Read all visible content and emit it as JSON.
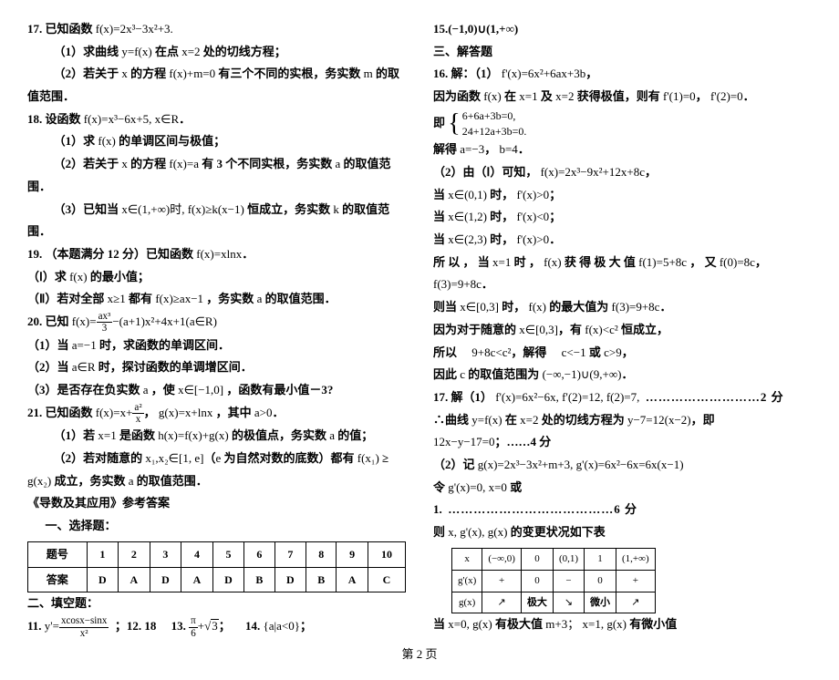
{
  "left": {
    "q17": {
      "head": "17. 已知函数",
      "f": "f(x)=2x³−3x²+3.",
      "p1a": "（1）求曲线",
      "p1b": "y=f(x)",
      "p1c": "在点",
      "p1d": "x=2",
      "p1e": "处的切线方程；",
      "p2a": "（2）若关于",
      "p2b": "x",
      "p2c": "的方程",
      "p2d": "f(x)+m=0",
      "p2e": "有三个不同的实根，务实数",
      "p2f": "m",
      "p2g": "的取",
      "p2h": "值范围．"
    },
    "q18": {
      "head": "18. 设函数",
      "f": "f(x)=x³−6x+5, x∈R",
      "dot": "．",
      "p1a": "（1）求",
      "p1b": "f(x)",
      "p1c": "的单调区间与极值；",
      "p2a": "（2）若关于",
      "p2b": "x",
      "p2c": "的方程",
      "p2d": "f(x)=a",
      "p2e": "有 3 个不同实根，务实数",
      "p2f": "a",
      "p2g": "的取值范",
      "p2h": "围．",
      "p3a": "（3）已知当",
      "p3b": "x∈(1,+∞)时,",
      "p3c": "f(x)≥k(x−1)",
      "p3d": "恒成立，务实数",
      "p3e": "k",
      "p3f": "的取值范围．"
    },
    "q19": {
      "head": "19. （本题满分 12 分）已知函数",
      "f": "f(x)=xlnx",
      "dot": "．",
      "p1a": "（Ⅰ）求",
      "p1b": "f(x)",
      "p1c": "的最小值；",
      "p2a": "（Ⅱ）若对全部",
      "p2b": "x≥1",
      "p2c": "都有",
      "p2d": "f(x)≥ax−1",
      "p2e": "，务实数",
      "p2f": "a",
      "p2g": "的取值范围．"
    },
    "q20": {
      "head": "20. 已知",
      "f_pre": "f(x)=",
      "num": "ax³",
      "den": "3",
      "f_post": "−(a+1)x²+4x+1(a∈R)",
      "p1a": "（1）当",
      "p1b": "a=−1",
      "p1c": "时，求函数的单调区间．",
      "p2a": "（2）当",
      "p2b": "a∈R",
      "p2c": "时，探讨函数的单调增区间．",
      "p3a": "（3）是否存在负实数",
      "p3b": "a",
      "p3c": "，使",
      "p3d": "x∈[−1,0]",
      "p3e": "，函数有最小值－3?"
    },
    "q21": {
      "head": "21. 已知函数",
      "f1a": "f(x)=x+",
      "num1": "a²",
      "den1": "x",
      "comma": "，",
      "f2": "g(x)=x+lnx",
      "tail": "，其中",
      "a": "a>0",
      "dot": "．",
      "p1a": "（1）若",
      "p1b": "x=1",
      "p1c": "是函数",
      "p1d": "h(x)=f(x)+g(x)",
      "p1e": "的极值点，务实数",
      "p1f": "a",
      "p1g": "的值；",
      "p2a": "（2）若对随意的",
      "p2b": "x₁,x₂∈[1, e]",
      "p2c": "（",
      "p2d": "e",
      "p2e": "为自然对数的底数）都有",
      "p2f": "f(x₁)",
      "p2g": "≥",
      "p3a": "g(x₂)",
      "p3b": "成立，务实数",
      "p3c": "a",
      "p3d": "的取值范围．"
    },
    "ans_title": "《导数及其应用》参考答案",
    "sec1": "一、选择题：",
    "answers": {
      "row1_label": "题号",
      "cells_num": [
        "1",
        "2",
        "3",
        "4",
        "5",
        "6",
        "7",
        "8",
        "9",
        "10"
      ],
      "row2_label": "答案",
      "cells_ans": [
        "D",
        "A",
        "D",
        "A",
        "D",
        "B",
        "D",
        "B",
        "A",
        "C"
      ]
    },
    "sec2": "二、填空题：",
    "q11a": "11. ",
    "q11b": "y'=",
    "q11num": "xcosx−sinx",
    "q11den": "x²",
    "q12": "；12. 18",
    "q13a": "13.",
    "q13num": "π",
    "q13den": "6",
    "q13b": "+",
    "q13c": "3",
    "q13d": "；",
    "q14a": "14.",
    "q14b": "{a|a<0}",
    "q14c": "；"
  },
  "right": {
    "q15": "15.(−1,0)∪(1,+∞)",
    "sec3": "三、解答题",
    "q16a": "16. 解：（1）",
    "q16b": "f'(x)=6x²+6ax+3b",
    "q16c": "，",
    "q16d": "因为函数",
    "q16e": "f(x)",
    "q16f": "在",
    "q16g": "x=1",
    "q16h": "及",
    "q16i": "x=2",
    "q16j": "获得极值，则有",
    "q16k": "f'(1)=0",
    "q16l": "，",
    "q16m": "f'(2)=0",
    "q16n": "．",
    "q16o": "即",
    "eq1": "6+6a+3b=0,",
    "eq2": "24+12a+3b=0.",
    "solve": "解得",
    "a3": "a=−3",
    "comma": "，",
    "b4": "b=4",
    "dot": "．",
    "p2a": "（2）由（Ⅰ）可知，",
    "p2b": "f(x)=2x³−9x²+12x+8c",
    "p2c": "，",
    "when1a": "当",
    "when1b": "x∈(0,1)",
    "when1c": "时，",
    "when1d": "f'(x)>0",
    "when1e": "；",
    "when2a": "当",
    "when2b": "x∈(1,2)",
    "when2c": "时，",
    "when2d": "f'(x)<0",
    "when2e": "；",
    "when3a": "当",
    "when3b": "x∈(2,3)",
    "when3c": "时，",
    "when3d": "f'(x)>0",
    "when3e": "．",
    "so1a": "所 以 ， 当",
    "so1b": "x=1",
    "so1c": "时 ，",
    "so1d": "f(x)",
    "so1e": "获 得 极 大 值",
    "so1f": "f(1)=5+8c",
    "so1g": "， 又",
    "so1h": "f(0)=8c",
    "so1i": "，",
    "so1j": "f(3)=9+8c",
    "so1k": "．",
    "then1a": "则当",
    "then1b": "x∈[0,3]",
    "then1c": "时，",
    "then1d": "f(x)",
    "then1e": "的最大值为",
    "then1f": "f(3)=9+8c",
    "then1g": "．",
    "bec1a": "因为对于随意的",
    "bec1b": "x∈[0,3]",
    "bec1c": "，有",
    "bec1d": "f(x)<c²",
    "bec1e": "恒成立，",
    "so2a": "所以　",
    "so2b": "9+8c<c²",
    "so2c": "，解得　",
    "so2d": "c<−1",
    "so2e": "或",
    "so2f": "c>9",
    "so2g": "，",
    "thus1a": "因此",
    "thus1b": "c",
    "thus1c": "的取值范围为",
    "thus1d": "(−∞,−1)∪(9,+∞)",
    "thus1e": "．",
    "q17a": "17. 解（1）",
    "q17b": "f'(x)=6x²−6x, f'(2)=12, f(2)=7,",
    "q17score1": "………………………2 分",
    "q17c": "∴曲线",
    "q17d": "y=f(x)",
    "q17e": "在",
    "q17f": "x=2",
    "q17g": "处的切线方程为",
    "q17h": "y−7=12(x−2)",
    "q17i": "，即",
    "q17j": "12x−y−17=0",
    "q17k": "；……4 分",
    "q17p2a": "（2）记",
    "q17p2b": "g(x)=2x³−3x²+m+3, g'(x)=6x²−6x=6x(x−1)",
    "q17p2c": "令",
    "q17p2d": "g'(x)=0, x=0",
    "q17p2e": "或",
    "q17p2f": "1.",
    "q17score2": "…………………………………6 分",
    "q17p2g": "则",
    "q17p2h": "x, g'(x), g(x)",
    "q17p2i": "的变更状况如下表",
    "vartable": {
      "h0": "x",
      "h": [
        "(−∞,0)",
        "0",
        "(0,1)",
        "1",
        "(1,+∞)"
      ],
      "r1_label": "g'(x)",
      "r1": [
        "+",
        "0",
        "−",
        "0",
        "+"
      ],
      "r2_label": "g(x)",
      "r2": [
        "↗",
        "极大",
        "↘",
        "微小",
        "↗"
      ]
    },
    "last1a": "当",
    "last1b": "x=0, g(x)",
    "last1c": "有极大值",
    "last1d": "m+3；",
    "last1e": "x=1, g(x)",
    "last1f": "有微小值"
  },
  "footer": "第 2 页"
}
